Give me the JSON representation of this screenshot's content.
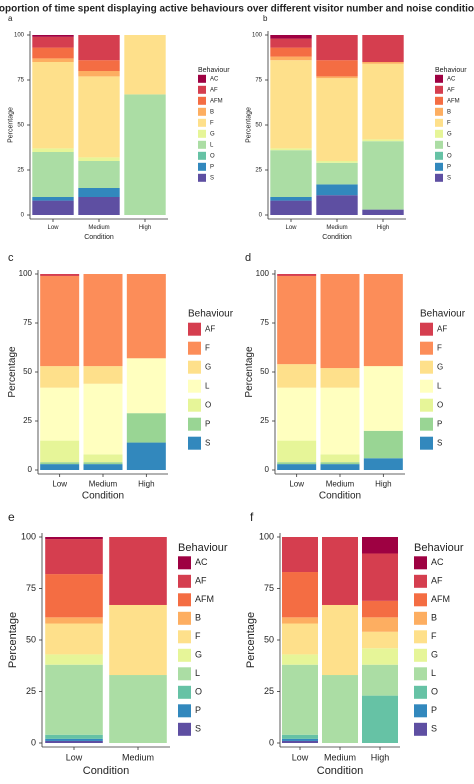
{
  "title": "Proportion of time spent displaying active behaviours over different visitor number and noise conditions",
  "chart_data": [
    {
      "type": "bar",
      "stacked": true,
      "label": "a",
      "xlabel": "Condition",
      "ylabel": "Percentage",
      "legend_title": "Behaviour",
      "legend": "right",
      "categories": [
        "Low",
        "Medium",
        "High"
      ],
      "ylim": [
        0,
        100
      ],
      "yticks": [
        0,
        25,
        50,
        75,
        100
      ],
      "series": [
        {
          "name": "AC",
          "color": "#9E0142",
          "values": [
            1,
            0,
            0
          ]
        },
        {
          "name": "AF",
          "color": "#D53E4F",
          "values": [
            6,
            14,
            0
          ]
        },
        {
          "name": "AFM",
          "color": "#F46D43",
          "values": [
            6,
            6,
            0
          ]
        },
        {
          "name": "B",
          "color": "#FDAE61",
          "values": [
            2,
            3,
            0
          ]
        },
        {
          "name": "F",
          "color": "#FEE08B",
          "values": [
            48,
            45,
            33
          ]
        },
        {
          "name": "G",
          "color": "#E6F598",
          "values": [
            2,
            2,
            0
          ]
        },
        {
          "name": "L",
          "color": "#ABDDA4",
          "values": [
            25,
            15,
            67
          ]
        },
        {
          "name": "O",
          "color": "#66C2A5",
          "values": [
            0,
            0,
            0
          ]
        },
        {
          "name": "P",
          "color": "#3288BD",
          "values": [
            2,
            5,
            0
          ]
        },
        {
          "name": "S",
          "color": "#5E4FA2",
          "values": [
            8,
            10,
            0
          ]
        }
      ]
    },
    {
      "type": "bar",
      "stacked": true,
      "label": "b",
      "xlabel": "Condition",
      "ylabel": "Percentage",
      "legend_title": "Behaviour",
      "legend": "right",
      "categories": [
        "Low",
        "Medium",
        "High"
      ],
      "ylim": [
        0,
        100
      ],
      "yticks": [
        0,
        25,
        50,
        75,
        100
      ],
      "series": [
        {
          "name": "AC",
          "color": "#9E0142",
          "values": [
            2,
            0,
            0
          ]
        },
        {
          "name": "AF",
          "color": "#D53E4F",
          "values": [
            5,
            14,
            15
          ]
        },
        {
          "name": "AFM",
          "color": "#F46D43",
          "values": [
            5,
            9,
            0
          ]
        },
        {
          "name": "B",
          "color": "#FDAE61",
          "values": [
            2,
            1,
            1
          ]
        },
        {
          "name": "F",
          "color": "#FEE08B",
          "values": [
            49,
            46,
            42
          ]
        },
        {
          "name": "G",
          "color": "#E6F598",
          "values": [
            1,
            1,
            1
          ]
        },
        {
          "name": "L",
          "color": "#ABDDA4",
          "values": [
            26,
            12,
            38
          ]
        },
        {
          "name": "O",
          "color": "#66C2A5",
          "values": [
            0,
            0,
            0
          ]
        },
        {
          "name": "P",
          "color": "#3288BD",
          "values": [
            2,
            6,
            0
          ]
        },
        {
          "name": "S",
          "color": "#5E4FA2",
          "values": [
            8,
            11,
            3
          ]
        }
      ]
    },
    {
      "type": "bar",
      "stacked": true,
      "label": "c",
      "xlabel": "Condition",
      "ylabel": "Percentage",
      "legend_title": "Behaviour",
      "legend": "right",
      "categories": [
        "Low",
        "Medium",
        "High"
      ],
      "ylim": [
        0,
        100
      ],
      "yticks": [
        0,
        25,
        50,
        75,
        100
      ],
      "series": [
        {
          "name": "AF",
          "color": "#D53E4F",
          "values": [
            1,
            0,
            0
          ]
        },
        {
          "name": "F",
          "color": "#FC8D59",
          "values": [
            46,
            47,
            43
          ]
        },
        {
          "name": "G",
          "color": "#FEE08B",
          "values": [
            11,
            9,
            0
          ]
        },
        {
          "name": "L",
          "color": "#FFFFBF",
          "values": [
            27,
            36,
            28
          ]
        },
        {
          "name": "O",
          "color": "#E6F598",
          "values": [
            11,
            4,
            0
          ]
        },
        {
          "name": "P",
          "color": "#99D594",
          "values": [
            1,
            1,
            15
          ]
        },
        {
          "name": "S",
          "color": "#3288BD",
          "values": [
            3,
            3,
            14
          ]
        }
      ]
    },
    {
      "type": "bar",
      "stacked": true,
      "label": "d",
      "xlabel": "Condition",
      "ylabel": "Percentage",
      "legend_title": "Behaviour",
      "legend": "right",
      "categories": [
        "Low",
        "Medium",
        "High"
      ],
      "ylim": [
        0,
        100
      ],
      "yticks": [
        0,
        25,
        50,
        75,
        100
      ],
      "series": [
        {
          "name": "AF",
          "color": "#D53E4F",
          "values": [
            1,
            0,
            0
          ]
        },
        {
          "name": "F",
          "color": "#FC8D59",
          "values": [
            45,
            48,
            47
          ]
        },
        {
          "name": "G",
          "color": "#FEE08B",
          "values": [
            12,
            10,
            0
          ]
        },
        {
          "name": "L",
          "color": "#FFFFBF",
          "values": [
            27,
            34,
            33
          ]
        },
        {
          "name": "O",
          "color": "#E6F598",
          "values": [
            11,
            4,
            0
          ]
        },
        {
          "name": "P",
          "color": "#99D594",
          "values": [
            1,
            1,
            14
          ]
        },
        {
          "name": "S",
          "color": "#3288BD",
          "values": [
            3,
            3,
            6
          ]
        }
      ]
    },
    {
      "type": "bar",
      "stacked": true,
      "label": "e",
      "xlabel": "Condition",
      "ylabel": "Percentage",
      "legend_title": "Behaviour",
      "legend": "right",
      "categories": [
        "Low",
        "Medium"
      ],
      "ylim": [
        0,
        100
      ],
      "yticks": [
        0,
        25,
        50,
        75,
        100
      ],
      "series": [
        {
          "name": "AC",
          "color": "#9E0142",
          "values": [
            1,
            0
          ]
        },
        {
          "name": "AF",
          "color": "#D53E4F",
          "values": [
            17,
            33
          ]
        },
        {
          "name": "AFM",
          "color": "#F46D43",
          "values": [
            21,
            0
          ]
        },
        {
          "name": "B",
          "color": "#FDAE61",
          "values": [
            3,
            0
          ]
        },
        {
          "name": "F",
          "color": "#FEE08B",
          "values": [
            15,
            34
          ]
        },
        {
          "name": "G",
          "color": "#E6F598",
          "values": [
            5,
            0
          ]
        },
        {
          "name": "L",
          "color": "#ABDDA4",
          "values": [
            34,
            33
          ]
        },
        {
          "name": "O",
          "color": "#66C2A5",
          "values": [
            2,
            0
          ]
        },
        {
          "name": "P",
          "color": "#3288BD",
          "values": [
            1,
            0
          ]
        },
        {
          "name": "S",
          "color": "#5E4FA2",
          "values": [
            1,
            0
          ]
        }
      ]
    },
    {
      "type": "bar",
      "stacked": true,
      "label": "f",
      "xlabel": "Condition",
      "ylabel": "Percentage",
      "legend_title": "Behaviour",
      "legend": "right",
      "categories": [
        "Low",
        "Medium",
        "High"
      ],
      "ylim": [
        0,
        100
      ],
      "yticks": [
        0,
        25,
        50,
        75,
        100
      ],
      "series": [
        {
          "name": "AC",
          "color": "#9E0142",
          "values": [
            0,
            0,
            8
          ]
        },
        {
          "name": "AF",
          "color": "#D53E4F",
          "values": [
            17,
            33,
            23
          ]
        },
        {
          "name": "AFM",
          "color": "#F46D43",
          "values": [
            22,
            0,
            8
          ]
        },
        {
          "name": "B",
          "color": "#FDAE61",
          "values": [
            3,
            0,
            7
          ]
        },
        {
          "name": "F",
          "color": "#FEE08B",
          "values": [
            15,
            34,
            8
          ]
        },
        {
          "name": "G",
          "color": "#E6F598",
          "values": [
            5,
            0,
            8
          ]
        },
        {
          "name": "L",
          "color": "#ABDDA4",
          "values": [
            34,
            33,
            15
          ]
        },
        {
          "name": "O",
          "color": "#66C2A5",
          "values": [
            2,
            0,
            23
          ]
        },
        {
          "name": "P",
          "color": "#3288BD",
          "values": [
            1,
            0,
            0
          ]
        },
        {
          "name": "S",
          "color": "#5E4FA2",
          "values": [
            1,
            0,
            0
          ]
        }
      ]
    }
  ]
}
